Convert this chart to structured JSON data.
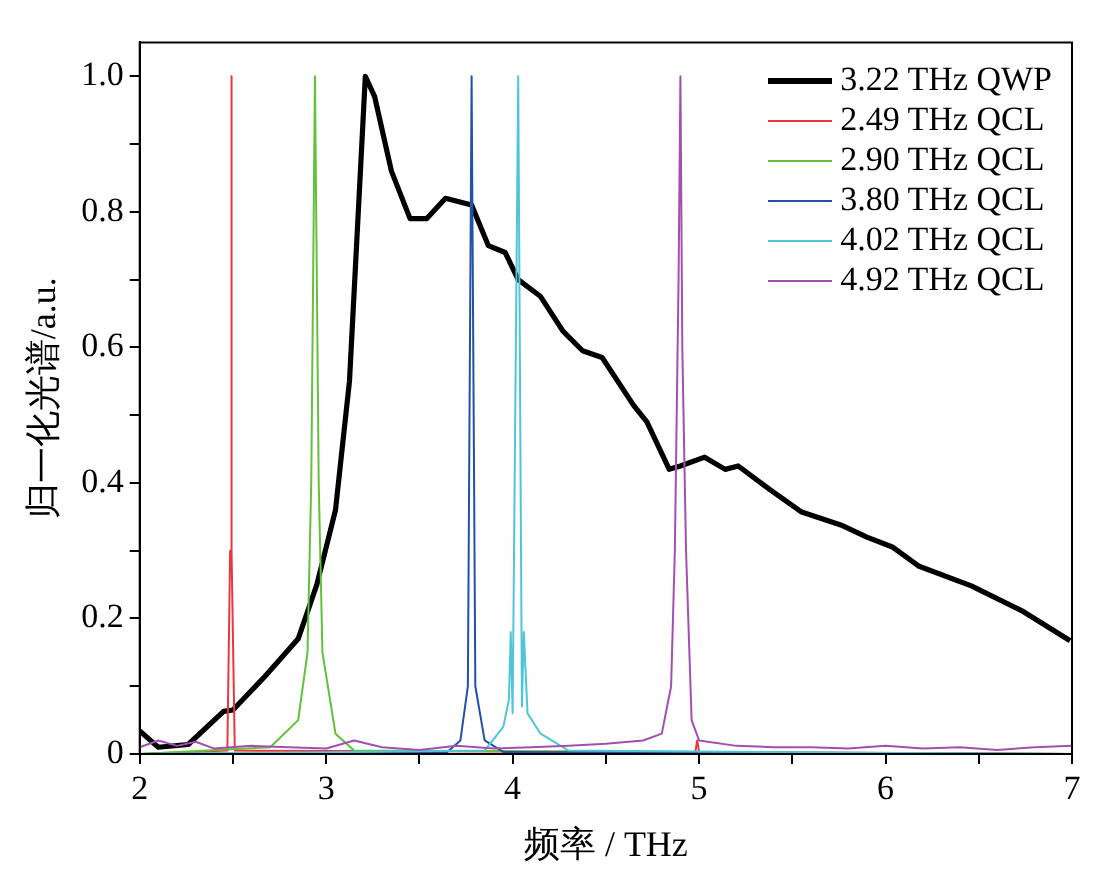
{
  "chart_data": {
    "type": "line",
    "xlabel": "频率 / THz",
    "ylabel": "归一化光谱/a.u.",
    "xlim": [
      2,
      7
    ],
    "xticks": [
      2,
      {
        "value": 2.5,
        "label": null
      },
      3,
      {
        "value": 3.5,
        "label": null
      },
      4,
      {
        "value": 4.5,
        "label": null
      },
      5,
      {
        "value": 5.5,
        "label": null
      },
      6,
      {
        "value": 6.5,
        "label": null
      },
      7
    ],
    "ylim": [
      0,
      1.05
    ],
    "yticks": [
      {
        "value": 0,
        "label": "0"
      },
      {
        "value": 0.1,
        "label": null
      },
      0.2,
      {
        "value": 0.3,
        "label": null
      },
      0.4,
      {
        "value": 0.5,
        "label": null
      },
      0.6,
      {
        "value": 0.7,
        "label": null
      },
      0.8,
      {
        "value": 0.9,
        "label": null
      },
      {
        "value": 1,
        "label": "1.0"
      }
    ],
    "grid": false,
    "legend": "top right",
    "marker": "none",
    "line_style": "solid",
    "series": [
      {
        "name": "3.22 THz QWP",
        "color": "#000000",
        "x": [
          2.0,
          2.1,
          2.26,
          2.45,
          2.5,
          2.67,
          2.85,
          2.95,
          3.05,
          3.125,
          3.18,
          3.21,
          3.26,
          3.35,
          3.45,
          3.54,
          3.64,
          3.78,
          3.87,
          3.96,
          4.03,
          4.15,
          4.27,
          4.375,
          4.48,
          4.65,
          4.72,
          4.84,
          4.9,
          5.03,
          5.14,
          5.21,
          5.38,
          5.55,
          5.76,
          5.9,
          6.04,
          6.18,
          6.46,
          6.74,
          6.99
        ],
        "values": [
          0.034,
          0.01,
          0.014,
          0.063,
          0.065,
          0.114,
          0.17,
          0.25,
          0.36,
          0.55,
          0.84,
          1.0,
          0.97,
          0.86,
          0.79,
          0.79,
          0.82,
          0.81,
          0.75,
          0.74,
          0.7,
          0.675,
          0.624,
          0.595,
          0.585,
          0.514,
          0.49,
          0.42,
          0.425,
          0.438,
          0.42,
          0.425,
          0.39,
          0.357,
          0.338,
          0.32,
          0.305,
          0.277,
          0.248,
          0.21,
          0.167
        ]
      },
      {
        "name": "2.49 THz QCL",
        "color": "#e8383d",
        "x": [
          2.0,
          2.47,
          2.485,
          2.49,
          2.495,
          2.51,
          4.98,
          4.99,
          5.0,
          7.0
        ],
        "values": [
          0.0,
          0.005,
          0.3,
          1.0,
          0.3,
          0.005,
          0.003,
          0.02,
          0.003,
          0.0
        ]
      },
      {
        "name": "2.90 THz QCL",
        "color": "#62c13a",
        "x": [
          2.0,
          2.7,
          2.85,
          2.9,
          2.92,
          2.94,
          2.96,
          2.98,
          3.05,
          3.15,
          7.0
        ],
        "values": [
          0.0,
          0.01,
          0.05,
          0.15,
          0.4,
          1.0,
          0.4,
          0.15,
          0.03,
          0.005,
          0.0
        ]
      },
      {
        "name": "3.80 THz QCL",
        "color": "#2251a8",
        "x": [
          2.0,
          3.65,
          3.72,
          3.76,
          3.78,
          3.8,
          3.85,
          3.95,
          7.0
        ],
        "values": [
          0.0,
          0.003,
          0.02,
          0.1,
          1.0,
          0.1,
          0.02,
          0.003,
          0.0
        ]
      },
      {
        "name": "4.02 THz QCL",
        "color": "#4fc6d8",
        "x": [
          2.0,
          3.85,
          3.95,
          3.98,
          3.99,
          4.0,
          4.03,
          4.05,
          4.06,
          4.08,
          4.15,
          4.3,
          7.0
        ],
        "values": [
          0.0,
          0.005,
          0.04,
          0.08,
          0.18,
          0.06,
          1.0,
          0.07,
          0.18,
          0.06,
          0.03,
          0.005,
          0.0
        ]
      },
      {
        "name": "4.92 THz QCL",
        "color": "#a34fb0",
        "x": [
          2.0,
          2.1,
          2.2,
          2.3,
          2.4,
          2.6,
          2.8,
          3.0,
          3.15,
          3.3,
          3.5,
          3.7,
          3.9,
          4.1,
          4.3,
          4.5,
          4.7,
          4.8,
          4.85,
          4.87,
          4.89,
          4.9,
          4.91,
          4.93,
          4.96,
          5.0,
          5.2,
          5.4,
          5.6,
          5.8,
          6.0,
          6.2,
          6.4,
          6.6,
          6.8,
          7.0
        ],
        "values": [
          0.01,
          0.02,
          0.012,
          0.018,
          0.008,
          0.012,
          0.01,
          0.008,
          0.02,
          0.01,
          0.006,
          0.012,
          0.008,
          0.01,
          0.012,
          0.015,
          0.02,
          0.03,
          0.1,
          0.3,
          0.7,
          1.0,
          0.6,
          0.3,
          0.05,
          0.02,
          0.012,
          0.01,
          0.01,
          0.008,
          0.012,
          0.008,
          0.01,
          0.006,
          0.01,
          0.012
        ]
      }
    ]
  }
}
